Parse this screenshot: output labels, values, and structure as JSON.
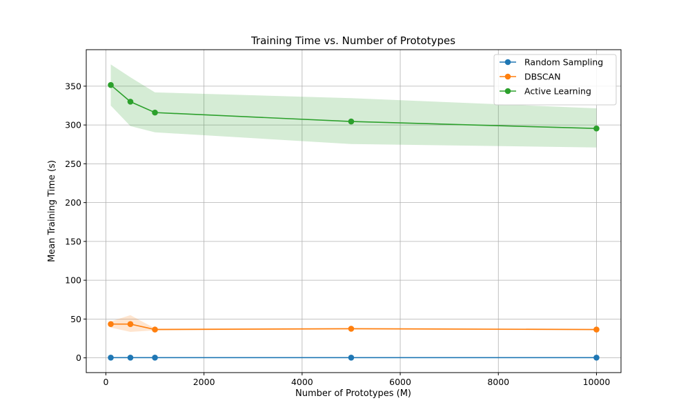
{
  "chart_data": {
    "type": "line",
    "title": "Training Time vs. Number of Prototypes",
    "xlabel": "Number of Prototypes (M)",
    "ylabel": "Mean Training Time (s)",
    "x": [
      100,
      500,
      1000,
      5000,
      10000
    ],
    "xlim": [
      -400,
      10500
    ],
    "ylim": [
      -19,
      397
    ],
    "xticks": [
      0,
      2000,
      4000,
      6000,
      8000,
      10000
    ],
    "yticks": [
      0,
      50,
      100,
      150,
      200,
      250,
      300,
      350
    ],
    "grid": true,
    "legend_position": "top-right",
    "series": [
      {
        "name": "Random Sampling",
        "color": "#1f77b4",
        "values": [
          0.3,
          0.3,
          0.3,
          0.3,
          0.3
        ],
        "band_lower": [
          0.1,
          0.1,
          0.1,
          0.1,
          0.1
        ],
        "band_upper": [
          0.5,
          0.5,
          0.5,
          0.5,
          0.5
        ]
      },
      {
        "name": "DBSCAN",
        "color": "#ff7f0e",
        "values": [
          43.5,
          43.5,
          36.5,
          37.5,
          36.5
        ],
        "band_lower": [
          39,
          33.5,
          35.5,
          36.5,
          35.5
        ],
        "band_upper": [
          47,
          55,
          38,
          38.5,
          37.5
        ]
      },
      {
        "name": "Active Learning",
        "color": "#2ca02c",
        "values": [
          351.5,
          330,
          316,
          304.5,
          295.5
        ],
        "band_lower": [
          325,
          298.5,
          290.5,
          275.5,
          271
        ],
        "band_upper": [
          378,
          361.5,
          342,
          334.5,
          321.5
        ]
      }
    ]
  }
}
